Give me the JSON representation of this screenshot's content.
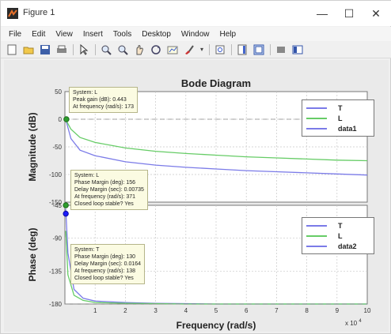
{
  "window": {
    "title": "Figure 1",
    "minimize_glyph": "—",
    "maximize_glyph": "☐",
    "close_glyph": "✕"
  },
  "menu": [
    "File",
    "Edit",
    "View",
    "Insert",
    "Tools",
    "Desktop",
    "Window",
    "Help"
  ],
  "toolbar_icons": [
    "new-figure-icon",
    "open-file-icon",
    "save-icon",
    "print-icon",
    "edit-plot-icon",
    "zoom-in-icon",
    "zoom-out-icon",
    "pan-icon",
    "rotate-3d-icon",
    "data-cursor-icon",
    "brush-icon",
    "link-icon",
    "colorbar-icon",
    "legend-icon",
    "hide-plot-tools-icon",
    "show-plot-tools-icon"
  ],
  "colors": {
    "T": "#7b7be8",
    "L": "#66cc66",
    "data1": "#7b7be8",
    "data2": "#7b7be8",
    "marker_green": "#2e9e2e",
    "marker_blue": "#1a1aff"
  },
  "chart_data": {
    "type": "line",
    "title": "Bode Diagram",
    "xlabel": "Frequency  (rad/s)",
    "x_exponent": "x 10",
    "x_exponent_power": "4",
    "xlim": [
      0,
      10
    ],
    "x_ticks": [
      "1",
      "2",
      "3",
      "4",
      "5",
      "6",
      "7",
      "8",
      "9",
      "10"
    ],
    "grid": true,
    "panels": [
      {
        "name": "magnitude",
        "ylabel": "Magnitude (dB)",
        "ylim": [
          -150,
          50
        ],
        "y_ticks": [
          "50",
          "0",
          "-50",
          "-100",
          "-150"
        ],
        "legend": [
          "T",
          "L",
          "data1"
        ],
        "legend_placement": "top-right",
        "series": [
          {
            "name": "T",
            "x": [
              0.05,
              0.2,
              0.5,
              1,
              2,
              3,
              4,
              5,
              6,
              7,
              8,
              9,
              10
            ],
            "values": [
              -5,
              -35,
              -56,
              -66,
              -77,
              -83,
              -87,
              -90,
              -93,
              -95,
              -97,
              -99,
              -101
            ]
          },
          {
            "name": "L",
            "x": [
              0.05,
              0.2,
              0.5,
              1,
              2,
              3,
              4,
              5,
              6,
              7,
              8,
              9,
              10
            ],
            "values": [
              -3,
              -18,
              -33,
              -42,
              -52,
              -58,
              -62,
              -65,
              -68,
              -70,
              -72,
              -74,
              -75
            ]
          },
          {
            "name": "data1",
            "x": [
              0,
              10
            ],
            "values": [
              0,
              0
            ]
          }
        ],
        "markers": [
          {
            "x": 0.05,
            "y": 0
          }
        ],
        "tooltips": [
          {
            "lines": [
              "System: L",
              "Peak gain (dB): 0.443",
              "At frequency (rad/s): 173"
            ]
          },
          {
            "lines": [
              "System: L",
              "Phase Margin (deg): 156",
              "Delay Margin (sec): 0.00735",
              "At frequency (rad/s): 371",
              "Closed loop stable? Yes"
            ]
          }
        ]
      },
      {
        "name": "phase",
        "ylabel": "Phase (deg)",
        "ylim": [
          -180,
          -45
        ],
        "y_ticks": [
          "-45",
          "-90",
          "-135",
          "-180"
        ],
        "legend": [
          "T",
          "L",
          "data2"
        ],
        "legend_placement": "top-right",
        "series": [
          {
            "name": "T",
            "x": [
              0.03,
              0.1,
              0.3,
              0.6,
              1,
              2,
              3,
              4,
              5,
              6,
              7,
              8,
              9,
              10
            ],
            "values": [
              -50,
              -110,
              -160,
              -172,
              -176,
              -178,
              -179,
              -179.5,
              -180,
              -180,
              -180,
              -180,
              -180,
              -180
            ]
          },
          {
            "name": "L",
            "x": [
              0.03,
              0.1,
              0.3,
              0.6,
              1,
              2,
              3,
              4,
              5,
              6,
              7,
              8,
              9,
              10
            ],
            "values": [
              -80,
              -140,
              -168,
              -175,
              -178,
              -179,
              -179.5,
              -180,
              -180,
              -180,
              -180,
              -180,
              -180,
              -180
            ]
          },
          {
            "name": "data2",
            "x": [
              0,
              10
            ],
            "values": [
              -180,
              -180
            ]
          }
        ],
        "markers": [
          {
            "x": 0.03,
            "y": -45
          },
          {
            "x": 0.03,
            "y": -50
          }
        ],
        "tooltips": [
          {
            "lines": [
              "System: T",
              "Phase Margin (deg): 130",
              "Delay Margin (sec): 0.0164",
              "At frequency (rad/s): 138",
              "Closed loop stable? Yes"
            ]
          }
        ]
      }
    ]
  }
}
